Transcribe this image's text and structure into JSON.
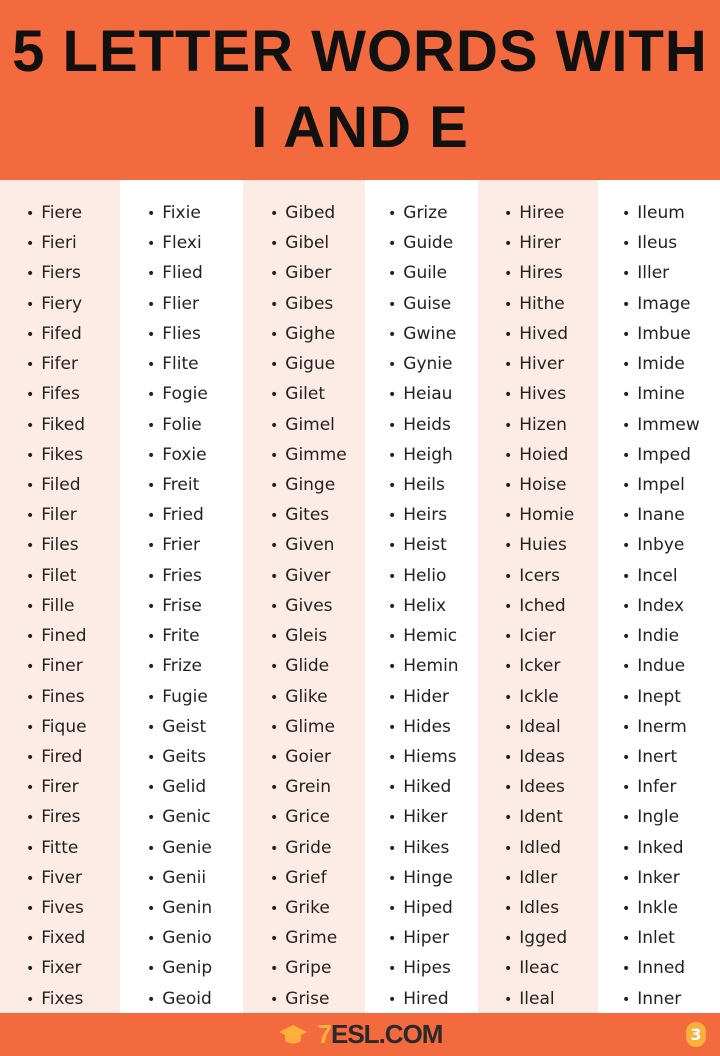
{
  "title": "5 LETTER WORDS WITH I AND E",
  "columns": [
    [
      "Fiere",
      "Fieri",
      "Fiers",
      "Fiery",
      "Fifed",
      "Fifer",
      "Fifes",
      "Fiked",
      "Fikes",
      "Filed",
      "Filer",
      "Files",
      "Filet",
      "Fille",
      "Fined",
      "Finer",
      "Fines",
      "Fique",
      "Fired",
      "Firer",
      "Fires",
      "Fitte",
      "Fiver",
      "Fives",
      "Fixed",
      "Fixer",
      "Fixes"
    ],
    [
      "Fixie",
      "Flexi",
      "Flied",
      "Flier",
      "Flies",
      "Flite",
      "Fogie",
      "Folie",
      "Foxie",
      "Freit",
      "Fried",
      "Frier",
      "Fries",
      "Frise",
      "Frite",
      "Frize",
      "Fugie",
      "Geist",
      "Geits",
      "Gelid",
      "Genic",
      "Genie",
      "Genii",
      "Genin",
      "Genio",
      "Genip",
      "Geoid"
    ],
    [
      "Gibed",
      "Gibel",
      "Giber",
      "Gibes",
      "Gighe",
      "Gigue",
      "Gilet",
      "Gimel",
      "Gimme",
      "Ginge",
      "Gites",
      "Given",
      "Giver",
      "Gives",
      "Gleis",
      "Glide",
      "Glike",
      "Glime",
      "Goier",
      "Grein",
      "Grice",
      "Gride",
      "Grief",
      "Grike",
      "Grime",
      "Gripe",
      "Grise"
    ],
    [
      "Grize",
      "Guide",
      "Guile",
      "Guise",
      "Gwine",
      "Gynie",
      "Heiau",
      "Heids",
      "Heigh",
      "Heils",
      "Heirs",
      "Heist",
      "Helio",
      "Helix",
      "Hemic",
      "Hemin",
      "Hider",
      "Hides",
      "Hiems",
      "Hiked",
      "Hiker",
      "Hikes",
      "Hinge",
      "Hiped",
      "Hiper",
      "Hipes",
      "Hired"
    ],
    [
      "Hiree",
      "Hirer",
      "Hires",
      "Hithe",
      "Hived",
      "Hiver",
      "Hives",
      "Hizen",
      "Hoied",
      "Hoise",
      "Homie",
      "Huies",
      "Icers",
      "Iched",
      "Icier",
      "Icker",
      "Ickle",
      "Ideal",
      "Ideas",
      "Idees",
      "Ident",
      "Idled",
      "Idler",
      "Idles",
      "Igged",
      "Ileac",
      "Ileal"
    ],
    [
      "Ileum",
      "Ileus",
      "Iller",
      "Image",
      "Imbue",
      "Imide",
      "Imine",
      "Immew",
      "Imped",
      "Impel",
      "Inane",
      "Inbye",
      "Incel",
      "Index",
      "Indie",
      "Indue",
      "Inept",
      "Inerm",
      "Inert",
      "Infer",
      "Ingle",
      "Inked",
      "Inker",
      "Inkle",
      "Inlet",
      "Inned",
      "Inner"
    ]
  ],
  "footer": {
    "logo_prefix": "7",
    "logo_text": "ESL.COM",
    "page_badge": "3"
  },
  "colors": {
    "accent": "#f26a3e",
    "peach": "#fdece5",
    "gold": "#fbb03b"
  }
}
